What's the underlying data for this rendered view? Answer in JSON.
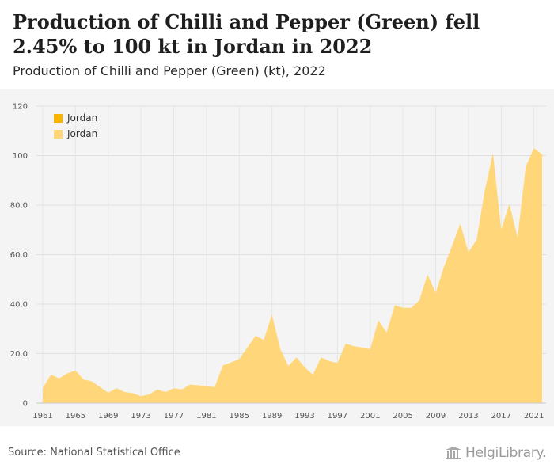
{
  "header": {
    "title": "Production of Chilli and Pepper (Green) fell 2.45% to 100 kt in Jordan in 2022",
    "subtitle": "Production of Chilli and Pepper (Green) (kt), 2022"
  },
  "footer": {
    "source": "Source: National Statistical Office",
    "logo_text": "HelgiLibrary."
  },
  "colors": {
    "legend_primary": "#f7b500",
    "area_fill": "#ffd77a",
    "chart_background": "#f4f4f4"
  },
  "chart_data": {
    "type": "area",
    "title": "Production of Chilli and Pepper (Green) fell 2.45% to 100 kt in Jordan in 2022",
    "subtitle": "Production of Chilli and Pepper (Green) (kt), 2022",
    "xlabel": "",
    "ylabel": "",
    "xlim": [
      1961,
      2022
    ],
    "ylim": [
      0,
      120
    ],
    "x_ticks": [
      1961,
      1965,
      1969,
      1973,
      1977,
      1981,
      1985,
      1989,
      1993,
      1997,
      2001,
      2005,
      2009,
      2013,
      2017,
      2021
    ],
    "y_ticks": [
      0,
      20.0,
      40.0,
      60.0,
      80.0,
      100,
      120
    ],
    "y_tick_labels": [
      "0",
      "20.0",
      "40.0",
      "60.0",
      "80.0",
      "100",
      "120"
    ],
    "grid": true,
    "legend": {
      "placement": "top-left",
      "entries": [
        {
          "label": "Jordan",
          "color": "#f7b500"
        },
        {
          "label": "Jordan",
          "color": "#ffd77a"
        }
      ]
    },
    "series": [
      {
        "name": "Jordan",
        "x": [
          1961,
          1962,
          1963,
          1964,
          1965,
          1966,
          1967,
          1968,
          1969,
          1970,
          1971,
          1972,
          1973,
          1974,
          1975,
          1976,
          1977,
          1978,
          1979,
          1980,
          1981,
          1982,
          1983,
          1984,
          1985,
          1986,
          1987,
          1988,
          1989,
          1990,
          1991,
          1992,
          1993,
          1994,
          1995,
          1996,
          1997,
          1998,
          1999,
          2000,
          2001,
          2002,
          2003,
          2004,
          2005,
          2006,
          2007,
          2008,
          2009,
          2010,
          2011,
          2012,
          2013,
          2014,
          2015,
          2016,
          2017,
          2018,
          2019,
          2020,
          2021,
          2022
        ],
        "values": [
          6.0,
          11.5,
          10.0,
          12.0,
          13.2,
          9.5,
          8.8,
          6.5,
          4.2,
          6.0,
          4.5,
          4.0,
          2.8,
          3.5,
          5.5,
          4.5,
          6.0,
          5.5,
          7.5,
          7.2,
          6.8,
          6.5,
          15.2,
          16.5,
          17.8,
          22.5,
          27.2,
          25.5,
          35.8,
          22.0,
          15.0,
          18.5,
          14.5,
          11.5,
          18.5,
          17.0,
          16.2,
          24.0,
          23.0,
          22.5,
          21.8,
          33.5,
          28.5,
          39.5,
          38.5,
          38.5,
          41.5,
          52.0,
          44.5,
          55.0,
          63.5,
          72.5,
          61.0,
          66.0,
          86.0,
          101.0,
          70.0,
          80.5,
          67.0,
          95.5,
          103.0,
          100.5
        ]
      }
    ]
  }
}
